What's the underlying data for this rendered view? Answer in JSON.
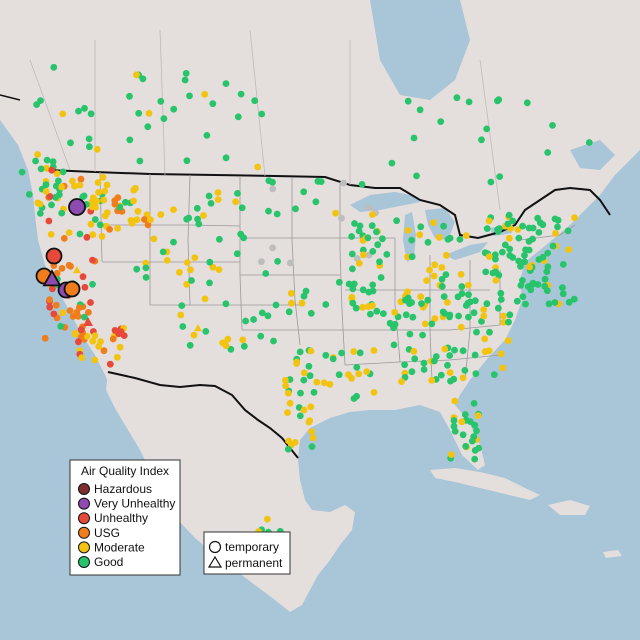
{
  "legend_aqi": {
    "title": "Air Quality Index",
    "items": [
      {
        "label": "Hazardous",
        "color": "#7e2e2e"
      },
      {
        "label": "Very Unhealthy",
        "color": "#8e4ab0"
      },
      {
        "label": "Unhealthy",
        "color": "#e8483a"
      },
      {
        "label": "USG",
        "color": "#f07d1b"
      },
      {
        "label": "Moderate",
        "color": "#f2c40f"
      },
      {
        "label": "Good",
        "color": "#27c46b"
      }
    ]
  },
  "legend_type": {
    "items": [
      {
        "label": "temporary",
        "shape": "circle"
      },
      {
        "label": "permanent",
        "shape": "triangle"
      }
    ]
  },
  "colors": {
    "land": "#e4dedd",
    "water": "#a9c5d8",
    "no_data": "#bdbdbd"
  }
}
